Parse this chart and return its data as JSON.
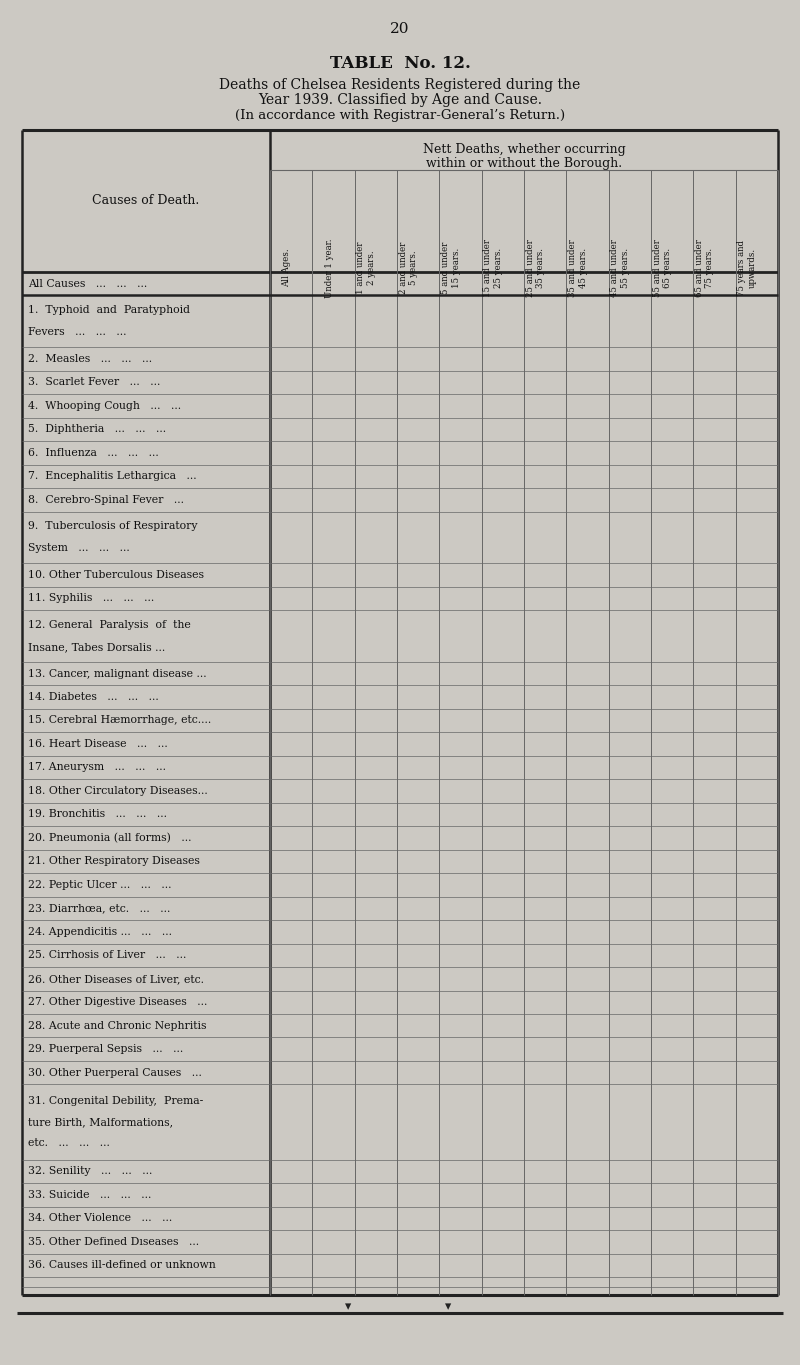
{
  "page_number": "20",
  "table_title": "TABLE  No. 12.",
  "subtitle_line1": "Deaths of Chelsea Residents Registered during the",
  "subtitle_line2": "Year 1939. Classified by Age and Cause.",
  "subtitle_line3": "(In accordance with Registrar-General’s Return.)",
  "col_header_left": "Causes of Death.",
  "col_headers": [
    "All Ages.",
    "Under 1 year.",
    "1 and under\n2 years.",
    "2 and under\n5 years.",
    "5 and under\n15 years.",
    "15 and under\n25 years.",
    "25 and under\n35 years.",
    "35 and under\n45 years.",
    "45 and under\n55 years.",
    "55 and under\n65 years.",
    "65 and under\n75 years.",
    "75 years and\nupwards."
  ],
  "row_labels": [
    [
      "All Causes   ...   ...   ...",
      false
    ],
    [
      "1.  Typhoid  and  Paratyphoid\n        Fevers   ...   ...   ...",
      false
    ],
    [
      "2.  Measles   ...   ...   ...",
      false
    ],
    [
      "3.  Scarlet Fever   ...   ...",
      false
    ],
    [
      "4.  Whooping Cough   ...   ...",
      false
    ],
    [
      "5.  Diphtheria   ...   ...   ...",
      false
    ],
    [
      "6.  Influenza   ...   ...   ...",
      false
    ],
    [
      "7.  Encephalitis Lethargica   ...",
      false
    ],
    [
      "8.  Cerebro-Spinal Fever   ...",
      false
    ],
    [
      "9.  Tuberculosis of Respiratory\n        System   ...   ...   ...",
      false
    ],
    [
      "10. Other Tuberculous Diseases",
      false
    ],
    [
      "11. Syphilis   ...   ...   ...",
      false
    ],
    [
      "12. General  Paralysis  of  the\n        Insane, Tabes Dorsalis ...",
      false
    ],
    [
      "13. Cancer, malignant disease ...",
      false
    ],
    [
      "14. Diabetes   ...   ...   ...",
      false
    ],
    [
      "15. Cerebral Hæmorrhage, etc....",
      false
    ],
    [
      "16. Heart Disease   ...   ...",
      false
    ],
    [
      "17. Aneurysm   ...   ...   ...",
      false
    ],
    [
      "18. Other Circulatory Diseases...",
      false
    ],
    [
      "19. Bronchitis   ...   ...   ...",
      false
    ],
    [
      "20. Pneumonia (all forms)   ...",
      false
    ],
    [
      "21. Other Respiratory Diseases",
      false
    ],
    [
      "22. Peptic Ulcer ...   ...   ...",
      false
    ],
    [
      "23. Diarrhœa, etc.   ...   ...",
      false
    ],
    [
      "24. Appendicitis ...   ...   ...",
      false
    ],
    [
      "25. Cirrhosis of Liver   ...   ...",
      false
    ],
    [
      "26. Other Diseases of Liver, etc.",
      false
    ],
    [
      "27. Other Digestive Diseases   ...",
      false
    ],
    [
      "28. Acute and Chronic Nephritis",
      false
    ],
    [
      "29. Puerperal Sepsis   ...   ...",
      false
    ],
    [
      "30. Other Puerperal Causes   ...",
      false
    ],
    [
      "31. Congenital Debility,  Prema-\n        ture Birth, Malformations,\n        etc.   ...   ...   ...",
      false
    ],
    [
      "32. Senility   ...   ...   ...",
      false
    ],
    [
      "33. Suicide   ...   ...   ...",
      false
    ],
    [
      "34. Other Violence   ...   ...",
      false
    ],
    [
      "35. Other Defined Dıseases   ...",
      false
    ],
    [
      "36. Causes ill-defined or unknown",
      false
    ]
  ],
  "bg_color": "#ccc9c3",
  "text_color": "#111111",
  "line_color": "#666666",
  "thick_line_color": "#222222"
}
